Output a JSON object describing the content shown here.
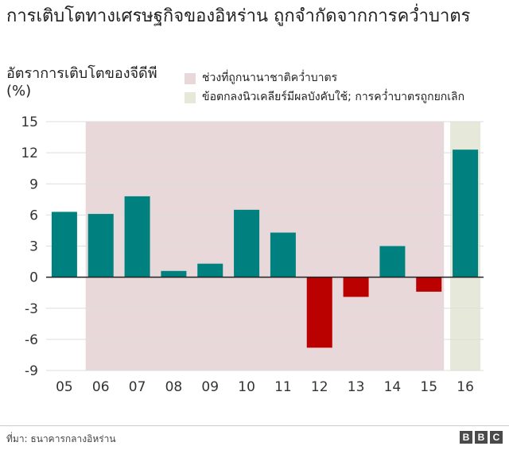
{
  "title": "การเติบโตทางเศรษฐกิจของอิหร่าน ถูกจำกัดจากการคว่ำบาตร",
  "legend": [
    {
      "label": "ช่วงที่ถูกนานาชาติคว่ำบาตร",
      "color": "#e8d8d9"
    },
    {
      "label": "ข้อตกลงนิวเคลียร์มีผลบังคับใช้; การคว่ำบาตรถูกยกเลิก",
      "color": "#e6e8d9"
    }
  ],
  "source": "ที่มา: ธนาคารกลางอิหร่าน",
  "logo": [
    "B",
    "B",
    "C"
  ],
  "colors": {
    "positive": "#00807f",
    "negative": "#bb0000",
    "grid": "#dddddd",
    "zero": "#222222"
  },
  "chart_data": {
    "type": "bar",
    "ylabel": "อัตราการเติบโตของจีดีพี (%)",
    "categories": [
      "05",
      "06",
      "07",
      "08",
      "09",
      "10",
      "11",
      "12",
      "13",
      "14",
      "15",
      "16"
    ],
    "values": [
      6.3,
      6.1,
      7.8,
      0.6,
      1.3,
      6.5,
      4.3,
      -6.8,
      -1.9,
      3.0,
      -1.4,
      12.3
    ],
    "ylim": [
      -9,
      15
    ],
    "yticks": [
      15,
      12,
      9,
      6,
      3,
      0,
      -3,
      -6,
      -9
    ],
    "shaded_regions": [
      {
        "from": "06",
        "to": "15",
        "legend": 0
      },
      {
        "from": "16",
        "to": "16",
        "legend": 1
      }
    ],
    "grid": true
  }
}
